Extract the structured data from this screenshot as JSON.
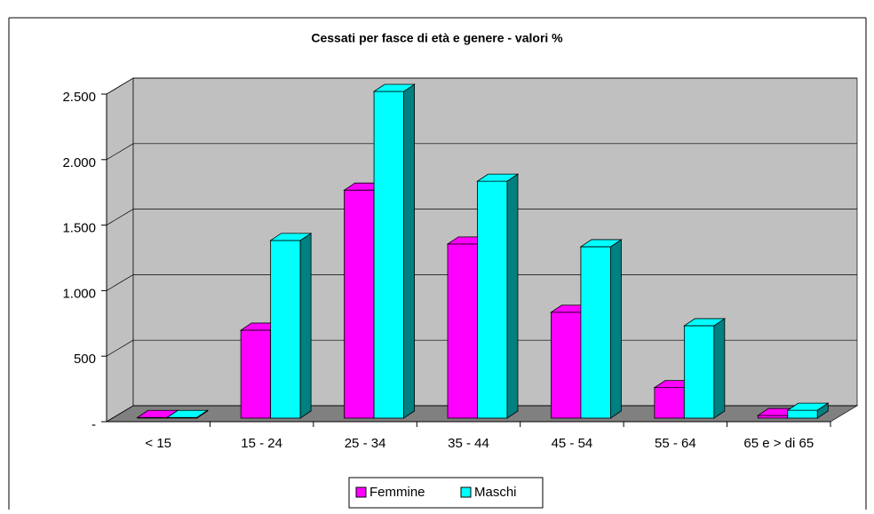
{
  "chart_data": {
    "type": "bar3d",
    "title": "Cessati per fasce di età e genere - valori %",
    "categories": [
      "< 15",
      "15 - 24",
      "25 - 34",
      "35 - 44",
      "45 - 54",
      "55 - 64",
      "65 e > di 65"
    ],
    "series": [
      {
        "name": "Femmine",
        "color": "#ff00ff",
        "values": [
          5,
          671,
          1740,
          1329,
          808,
          233,
          20
        ]
      },
      {
        "name": "Maschi",
        "color": "#00ffff",
        "values": [
          5,
          1356,
          2493,
          1808,
          1308,
          705,
          60
        ]
      }
    ],
    "ylim": [
      0,
      2500
    ],
    "yticks": [
      {
        "value": 0,
        "label": "-"
      },
      500,
      {
        "value": 1000,
        "label": "1.000"
      },
      {
        "value": 1500,
        "label": "1.500"
      },
      {
        "value": 2000,
        "label": "2.000"
      },
      {
        "value": 2500,
        "label": "2.500"
      }
    ],
    "grid": true,
    "legend": "bottom"
  }
}
